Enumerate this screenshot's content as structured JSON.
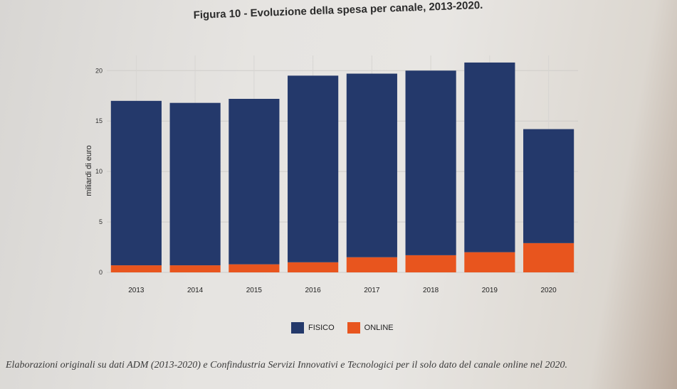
{
  "page": {
    "title": "Figura 10 - Evoluzione della spesa per canale, 2013-2020.",
    "footer": "Elaborazioni originali su dati ADM (2013-2020) e Confindustria Servizi Innovativi e Tecnologici per il solo dato del canale online nel 2020."
  },
  "chart_data": {
    "type": "bar",
    "stacked": true,
    "title": "Figura 10 - Evoluzione della spesa per canale, 2013-2020.",
    "xlabel": "",
    "ylabel": "miliardi di euro",
    "ylim": [
      0,
      21.5
    ],
    "yticks": [
      0,
      5,
      10,
      15,
      20
    ],
    "grid": true,
    "legend_position": "bottom",
    "categories": [
      "2013",
      "2014",
      "2015",
      "2016",
      "2017",
      "2018",
      "2019",
      "2020"
    ],
    "series": [
      {
        "name": "ONLINE",
        "color": "#e8551e",
        "values": [
          0.7,
          0.7,
          0.8,
          1.0,
          1.5,
          1.7,
          2.0,
          2.9
        ]
      },
      {
        "name": "FISICO",
        "color": "#24396b",
        "values": [
          16.3,
          16.1,
          16.4,
          18.5,
          18.2,
          18.3,
          18.8,
          11.3
        ]
      }
    ]
  }
}
